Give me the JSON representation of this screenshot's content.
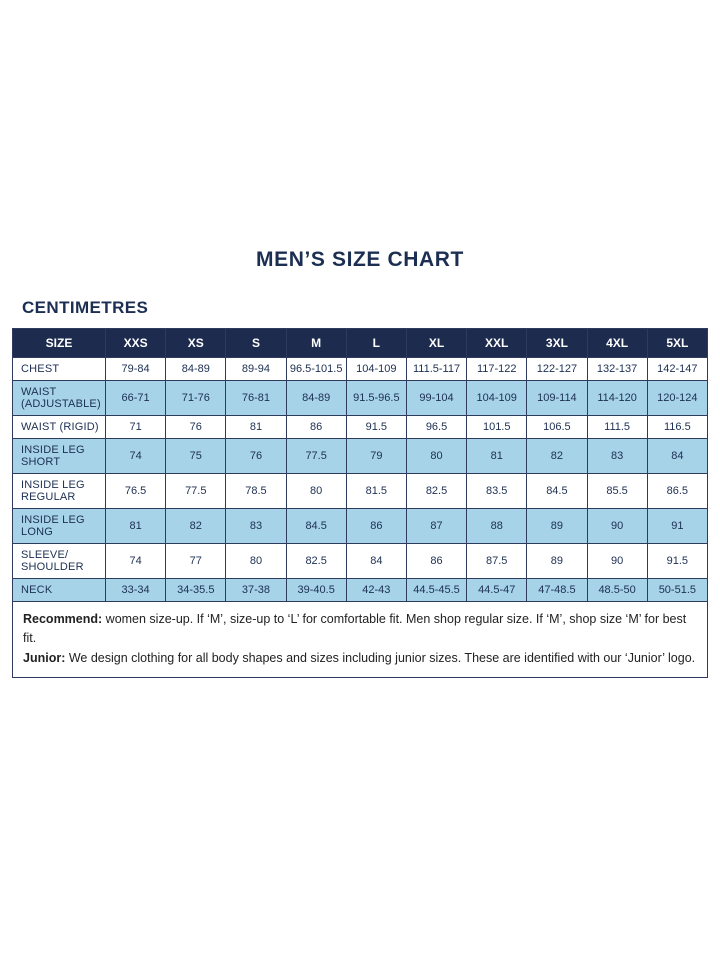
{
  "page": {
    "title": "MEN’S SIZE CHART",
    "units_label": "CENTIMETRES"
  },
  "chart_data": {
    "type": "table",
    "title": "MEN’S SIZE CHART",
    "units": "CENTIMETRES",
    "columns": [
      "SIZE",
      "XXS",
      "XS",
      "S",
      "M",
      "L",
      "XL",
      "XXL",
      "3XL",
      "4XL",
      "5XL"
    ],
    "rows": [
      {
        "label": "CHEST",
        "values": [
          "79-84",
          "84-89",
          "89-94",
          "96.5-101.5",
          "104-109",
          "111.5-117",
          "117-122",
          "122-127",
          "132-137",
          "142-147"
        ]
      },
      {
        "label": "WAIST (ADJUSTABLE)",
        "values": [
          "66-71",
          "71-76",
          "76-81",
          "84-89",
          "91.5-96.5",
          "99-104",
          "104-109",
          "109-114",
          "114-120",
          "120-124"
        ]
      },
      {
        "label": "WAIST (RIGID)",
        "values": [
          "71",
          "76",
          "81",
          "86",
          "91.5",
          "96.5",
          "101.5",
          "106.5",
          "111.5",
          "116.5"
        ]
      },
      {
        "label": "INSIDE LEG SHORT",
        "values": [
          "74",
          "75",
          "76",
          "77.5",
          "79",
          "80",
          "81",
          "82",
          "83",
          "84"
        ]
      },
      {
        "label": "INSIDE LEG REGULAR",
        "values": [
          "76.5",
          "77.5",
          "78.5",
          "80",
          "81.5",
          "82.5",
          "83.5",
          "84.5",
          "85.5",
          "86.5"
        ]
      },
      {
        "label": "INSIDE LEG LONG",
        "values": [
          "81",
          "82",
          "83",
          "84.5",
          "86",
          "87",
          "88",
          "89",
          "90",
          "91"
        ]
      },
      {
        "label": "SLEEVE/ SHOULDER",
        "values": [
          "74",
          "77",
          "80",
          "82.5",
          "84",
          "86",
          "87.5",
          "89",
          "90",
          "91.5"
        ]
      },
      {
        "label": "NECK",
        "values": [
          "33-34",
          "34-35.5",
          "37-38",
          "39-40.5",
          "42-43",
          "44.5-45.5",
          "44.5-47",
          "47-48.5",
          "48.5-50",
          "50-51.5"
        ]
      }
    ]
  },
  "footer": {
    "recommend_label": "Recommend:",
    "recommend_text": " women size-up. If ‘M’, size-up to ‘L’ for comfortable fit. Men shop regular size. If ‘M’, shop size ‘M’ for best fit.",
    "junior_label": "Junior:",
    "junior_text": " We design clothing for all body shapes and sizes including junior sizes. These are identified with our ‘Junior’ logo."
  },
  "colors": {
    "header_bg": "#1c2b4e",
    "header_text": "#ffffff",
    "alt_row_bg": "#a7d3e8",
    "border": "#2e3b5e",
    "title_text": "#1c2f52"
  }
}
